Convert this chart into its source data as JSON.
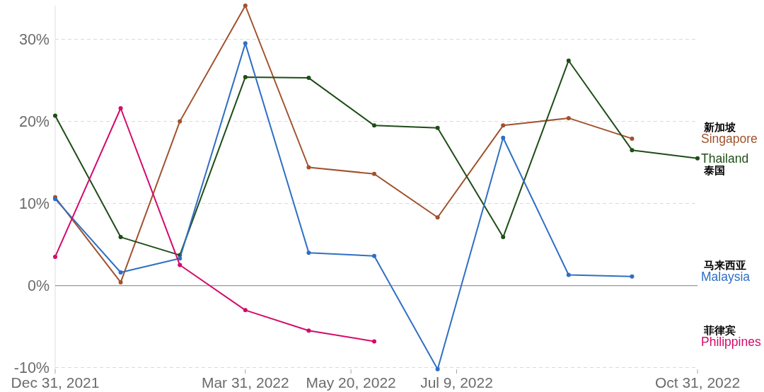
{
  "chart_data": {
    "type": "line",
    "x": [
      "2021-12-31",
      "2022-01-31",
      "2022-02-28",
      "2022-03-31",
      "2022-04-30",
      "2022-05-31",
      "2022-06-30",
      "2022-07-31",
      "2022-08-31",
      "2022-09-30",
      "2022-10-31"
    ],
    "series": [
      {
        "name": "Singapore",
        "color": "#a0522d",
        "values": [
          10.75,
          0.4,
          20.0,
          34.1,
          14.4,
          13.6,
          8.3,
          19.5,
          20.4,
          17.9,
          null
        ]
      },
      {
        "name": "Thailand",
        "color": "#1e4d17",
        "values": [
          20.7,
          5.9,
          3.7,
          25.4,
          25.3,
          19.5,
          19.2,
          5.9,
          27.4,
          16.5,
          15.5
        ]
      },
      {
        "name": "Malaysia",
        "color": "#2f6fc4",
        "values": [
          10.55,
          1.6,
          3.3,
          29.5,
          4.0,
          3.6,
          -10.2,
          18.0,
          1.3,
          1.1,
          null
        ]
      },
      {
        "name": "Philippines",
        "color": "#d40a6b",
        "values": [
          3.5,
          21.6,
          2.5,
          -3.0,
          -5.5,
          -6.8,
          null,
          null,
          null,
          null,
          null
        ]
      }
    ],
    "xlim": [
      "2021-12-31",
      "2022-10-31"
    ],
    "xticks": [
      {
        "value": "2021-12-31",
        "label": "Dec 31, 2021"
      },
      {
        "value": "2022-03-31",
        "label": "Mar 31, 2022"
      },
      {
        "value": "2022-05-20",
        "label": "May 20, 2022"
      },
      {
        "value": "2022-07-09",
        "label": "Jul 9, 2022"
      },
      {
        "value": "2022-10-31",
        "label": "Oct 31, 2022"
      }
    ],
    "ylim": [
      -10.3,
      34.1
    ],
    "yticks": [
      {
        "value": -10,
        "label": "-10%"
      },
      {
        "value": 0,
        "label": "0%"
      },
      {
        "value": 10,
        "label": "10%"
      },
      {
        "value": 20,
        "label": "20%"
      },
      {
        "value": 30,
        "label": "30%"
      }
    ],
    "grid": "y",
    "marker": "circle",
    "line_style": "solid",
    "ref_lines": [
      {
        "axis": "y",
        "value": 0,
        "color": "#999999",
        "line_style": "solid"
      }
    ],
    "annotations": [
      "新加坡",
      "泰国",
      "马来西亚",
      "菲律宾"
    ]
  }
}
